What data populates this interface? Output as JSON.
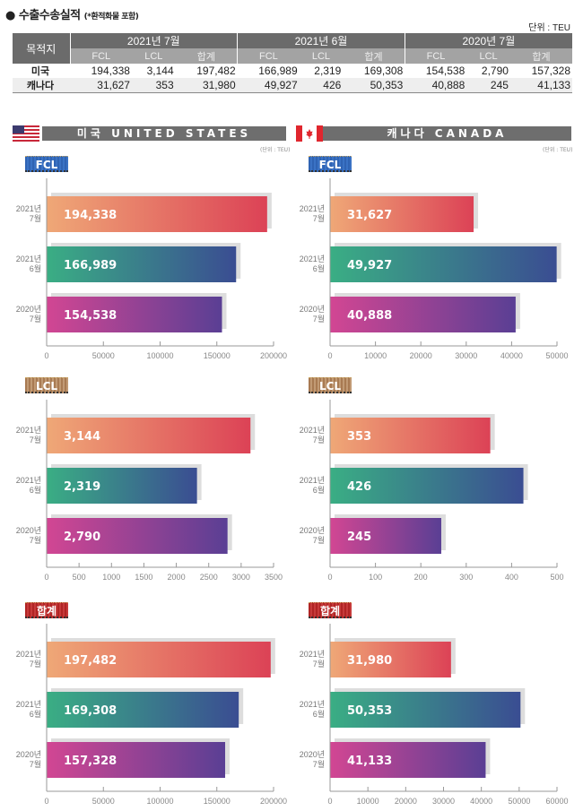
{
  "header": {
    "title": "● 수출수송실적",
    "subtitle": "(*환적화물 포함)",
    "unit": "단위 : TEU"
  },
  "table": {
    "corner": "목적지",
    "periods": [
      "2021년 7월",
      "2021년 6월",
      "2020년 7월"
    ],
    "subcols": [
      "FCL",
      "LCL",
      "합계"
    ],
    "rows": [
      {
        "name": "미국",
        "values": [
          "194,338",
          "3,144",
          "197,482",
          "166,989",
          "2,319",
          "169,308",
          "154,538",
          "2,790",
          "157,328"
        ]
      },
      {
        "name": "캐나다",
        "values": [
          "31,627",
          "353",
          "31,980",
          "49,927",
          "426",
          "50,353",
          "40,888",
          "245",
          "41,133"
        ]
      }
    ]
  },
  "sections": {
    "us": {
      "banner": "미국 UNITED STATES",
      "unit": "(단위 : TEU)"
    },
    "ca": {
      "banner": "캐나다 CANADA",
      "unit": "(단위 : TEU)"
    }
  },
  "badges": {
    "fcl": "FCL",
    "lcl": "LCL",
    "sum": "합계"
  },
  "colors": {
    "bar1": [
      "#efa877",
      "#dc4256"
    ],
    "bar2": [
      "#3aae84",
      "#3a4d92"
    ],
    "bar3": [
      "#d24693",
      "#5a3f94"
    ],
    "shadow": "#dddddd",
    "axis": "#999999"
  },
  "chart_data": [
    {
      "id": "us-fcl",
      "type": "bar",
      "orientation": "horizontal",
      "title": "미국 FCL",
      "categories": [
        "2021년 7월",
        "2021년 6월",
        "2020년 7월"
      ],
      "values": [
        194338,
        166989,
        154538
      ],
      "labels": [
        "194,338",
        "166,989",
        "154,538"
      ],
      "xlim": [
        0,
        200000
      ],
      "ticks": [
        0,
        50000,
        100000,
        150000,
        200000
      ]
    },
    {
      "id": "ca-fcl",
      "type": "bar",
      "orientation": "horizontal",
      "title": "캐나다 FCL",
      "categories": [
        "2021년 7월",
        "2021년 6월",
        "2020년 7월"
      ],
      "values": [
        31627,
        49927,
        40888
      ],
      "labels": [
        "31,627",
        "49,927",
        "40,888"
      ],
      "xlim": [
        0,
        50000
      ],
      "ticks": [
        0,
        10000,
        20000,
        30000,
        40000,
        50000
      ]
    },
    {
      "id": "us-lcl",
      "type": "bar",
      "orientation": "horizontal",
      "title": "미국 LCL",
      "categories": [
        "2021년 7월",
        "2021년 6월",
        "2020년 7월"
      ],
      "values": [
        3144,
        2319,
        2790
      ],
      "labels": [
        "3,144",
        "2,319",
        "2,790"
      ],
      "xlim": [
        0,
        3500
      ],
      "ticks": [
        0,
        500,
        1000,
        1500,
        2000,
        2500,
        3000,
        3500
      ]
    },
    {
      "id": "ca-lcl",
      "type": "bar",
      "orientation": "horizontal",
      "title": "캐나다 LCL",
      "categories": [
        "2021년 7월",
        "2021년 6월",
        "2020년 7월"
      ],
      "values": [
        353,
        426,
        245
      ],
      "labels": [
        "353",
        "426",
        "245"
      ],
      "xlim": [
        0,
        500
      ],
      "ticks": [
        0,
        100,
        200,
        300,
        400,
        500
      ]
    },
    {
      "id": "us-sum",
      "type": "bar",
      "orientation": "horizontal",
      "title": "미국 합계",
      "categories": [
        "2021년 7월",
        "2021년 6월",
        "2020년 7월"
      ],
      "values": [
        197482,
        169308,
        157328
      ],
      "labels": [
        "197,482",
        "169,308",
        "157,328"
      ],
      "xlim": [
        0,
        200000
      ],
      "ticks": [
        0,
        50000,
        100000,
        150000,
        200000
      ]
    },
    {
      "id": "ca-sum",
      "type": "bar",
      "orientation": "horizontal",
      "title": "캐나다 합계",
      "categories": [
        "2021년 7월",
        "2021년 6월",
        "2020년 7월"
      ],
      "values": [
        31980,
        50353,
        41133
      ],
      "labels": [
        "31,980",
        "50,353",
        "41,133"
      ],
      "xlim": [
        0,
        60000
      ],
      "ticks": [
        0,
        10000,
        20000,
        30000,
        40000,
        50000,
        60000
      ]
    }
  ]
}
